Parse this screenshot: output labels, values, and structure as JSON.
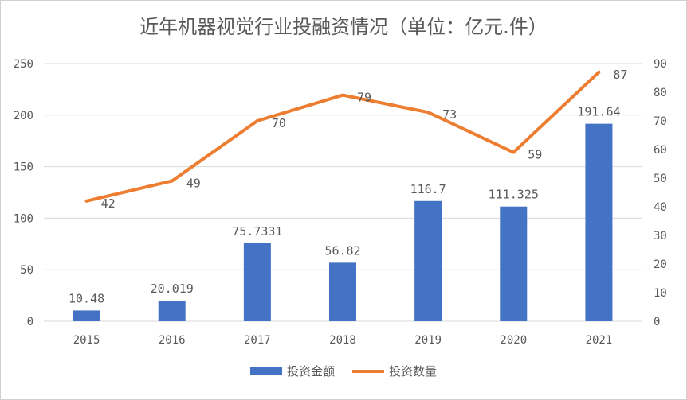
{
  "chart_data": {
    "type": "bar",
    "title": "近年机器视觉行业投融资情况（单位：亿元.件）",
    "categories": [
      "2015",
      "2016",
      "2017",
      "2018",
      "2019",
      "2020",
      "2021"
    ],
    "series": [
      {
        "name": "投资金额",
        "type": "bar",
        "axis": "left",
        "color": "#4472C4",
        "values": [
          10.48,
          20.019,
          75.7331,
          56.82,
          116.7,
          111.325,
          191.64
        ],
        "labels": [
          "10.48",
          "20.019",
          "75.7331",
          "56.82",
          "116.7",
          "111.325",
          "191.64"
        ]
      },
      {
        "name": "投资数量",
        "type": "line",
        "axis": "right",
        "color": "#ED7D31",
        "values": [
          42,
          49,
          70,
          79,
          73,
          59,
          87
        ],
        "labels": [
          "42",
          "49",
          "70",
          "79",
          "73",
          "59",
          "87"
        ]
      }
    ],
    "ylim_left": [
      0,
      250
    ],
    "yticks_left": [
      "0",
      "50",
      "100",
      "150",
      "200",
      "250"
    ],
    "ylim_right": [
      0,
      90
    ],
    "yticks_right": [
      "0",
      "10",
      "20",
      "30",
      "40",
      "50",
      "60",
      "70",
      "80",
      "90"
    ],
    "grid": true,
    "legend": "bottom"
  }
}
